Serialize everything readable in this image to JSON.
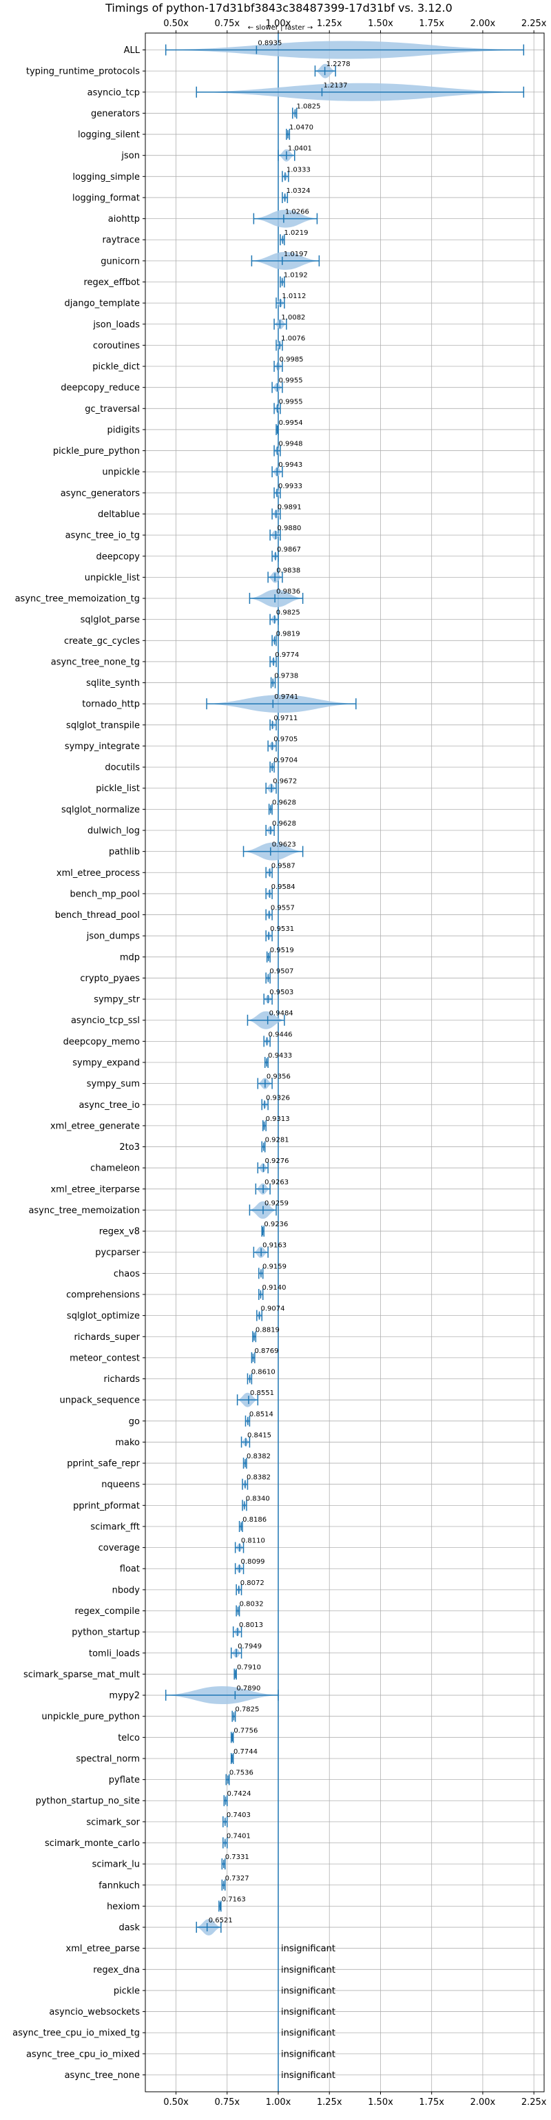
{
  "chart_data": {
    "type": "violin",
    "title": "Timings of python-17d31bf3843c38487399-17d31bf vs. 3.12.0",
    "annotation": "← slower | faster →",
    "xlim": [
      0.35,
      2.3
    ],
    "x_ticks": [
      0.5,
      0.75,
      1.0,
      1.25,
      1.5,
      1.75,
      2.0,
      2.25
    ],
    "x_tick_labels": [
      "0.50x",
      "0.75x",
      "1.00x",
      "1.25x",
      "1.50x",
      "1.75x",
      "2.00x",
      "2.25x"
    ],
    "grid": true,
    "reference_line": 1.0,
    "benchmarks": [
      {
        "name": "ALL",
        "value": 0.8935,
        "label": "0.8935",
        "low": 0.45,
        "high": 2.2
      },
      {
        "name": "typing_runtime_protocols",
        "value": 1.2278,
        "label": "1.2278",
        "low": 1.18,
        "high": 1.28
      },
      {
        "name": "asyncio_tcp",
        "value": 1.2137,
        "label": "1.2137",
        "low": 0.6,
        "high": 2.2
      },
      {
        "name": "generators",
        "value": 1.0825,
        "label": "1.0825",
        "low": 1.07,
        "high": 1.09
      },
      {
        "name": "logging_silent",
        "value": 1.047,
        "label": "1.0470",
        "low": 1.04,
        "high": 1.055
      },
      {
        "name": "json",
        "value": 1.0401,
        "label": "1.0401",
        "low": 1.0,
        "high": 1.08
      },
      {
        "name": "logging_simple",
        "value": 1.0333,
        "label": "1.0333",
        "low": 1.02,
        "high": 1.05
      },
      {
        "name": "logging_format",
        "value": 1.0324,
        "label": "1.0324",
        "low": 1.02,
        "high": 1.045
      },
      {
        "name": "aiohttp",
        "value": 1.0266,
        "label": "1.0266",
        "low": 0.88,
        "high": 1.19
      },
      {
        "name": "raytrace",
        "value": 1.0219,
        "label": "1.0219",
        "low": 1.01,
        "high": 1.03
      },
      {
        "name": "gunicorn",
        "value": 1.0197,
        "label": "1.0197",
        "low": 0.87,
        "high": 1.2
      },
      {
        "name": "regex_effbot",
        "value": 1.0192,
        "label": "1.0192",
        "low": 1.01,
        "high": 1.03
      },
      {
        "name": "django_template",
        "value": 1.0112,
        "label": "1.0112",
        "low": 0.99,
        "high": 1.03
      },
      {
        "name": "json_loads",
        "value": 1.0082,
        "label": "1.0082",
        "low": 0.98,
        "high": 1.04
      },
      {
        "name": "coroutines",
        "value": 1.0076,
        "label": "1.0076",
        "low": 0.99,
        "high": 1.02
      },
      {
        "name": "pickle_dict",
        "value": 0.9985,
        "label": "0.9985",
        "low": 0.98,
        "high": 1.02
      },
      {
        "name": "deepcopy_reduce",
        "value": 0.9955,
        "label": "0.9955",
        "low": 0.97,
        "high": 1.02
      },
      {
        "name": "gc_traversal",
        "value": 0.9955,
        "label": "0.9955",
        "low": 0.98,
        "high": 1.01
      },
      {
        "name": "pidigits",
        "value": 0.9954,
        "label": "0.9954",
        "low": 0.99,
        "high": 1.0
      },
      {
        "name": "pickle_pure_python",
        "value": 0.9948,
        "label": "0.9948",
        "low": 0.98,
        "high": 1.01
      },
      {
        "name": "unpickle",
        "value": 0.9943,
        "label": "0.9943",
        "low": 0.97,
        "high": 1.02
      },
      {
        "name": "async_generators",
        "value": 0.9933,
        "label": "0.9933",
        "low": 0.98,
        "high": 1.01
      },
      {
        "name": "deltablue",
        "value": 0.9891,
        "label": "0.9891",
        "low": 0.97,
        "high": 1.01
      },
      {
        "name": "async_tree_io_tg",
        "value": 0.988,
        "label": "0.9880",
        "low": 0.96,
        "high": 1.01
      },
      {
        "name": "deepcopy",
        "value": 0.9867,
        "label": "0.9867",
        "low": 0.97,
        "high": 1.0
      },
      {
        "name": "unpickle_list",
        "value": 0.9838,
        "label": "0.9838",
        "low": 0.95,
        "high": 1.02
      },
      {
        "name": "async_tree_memoization_tg",
        "value": 0.9836,
        "label": "0.9836",
        "low": 0.86,
        "high": 1.12
      },
      {
        "name": "sqlglot_parse",
        "value": 0.9825,
        "label": "0.9825",
        "low": 0.96,
        "high": 1.0
      },
      {
        "name": "create_gc_cycles",
        "value": 0.9819,
        "label": "0.9819",
        "low": 0.97,
        "high": 0.99
      },
      {
        "name": "async_tree_none_tg",
        "value": 0.9774,
        "label": "0.9774",
        "low": 0.96,
        "high": 0.99
      },
      {
        "name": "sqlite_synth",
        "value": 0.9738,
        "label": "0.9738",
        "low": 0.965,
        "high": 0.985
      },
      {
        "name": "tornado_http",
        "value": 0.9741,
        "label": "0.9741",
        "low": 0.65,
        "high": 1.38
      },
      {
        "name": "sqlglot_transpile",
        "value": 0.9711,
        "label": "0.9711",
        "low": 0.96,
        "high": 0.99
      },
      {
        "name": "sympy_integrate",
        "value": 0.9705,
        "label": "0.9705",
        "low": 0.95,
        "high": 0.99
      },
      {
        "name": "docutils",
        "value": 0.9704,
        "label": "0.9704",
        "low": 0.96,
        "high": 0.98
      },
      {
        "name": "pickle_list",
        "value": 0.9672,
        "label": "0.9672",
        "low": 0.94,
        "high": 0.99
      },
      {
        "name": "sqlglot_normalize",
        "value": 0.9628,
        "label": "0.9628",
        "low": 0.955,
        "high": 0.97
      },
      {
        "name": "dulwich_log",
        "value": 0.9628,
        "label": "0.9628",
        "low": 0.94,
        "high": 0.98
      },
      {
        "name": "pathlib",
        "value": 0.9623,
        "label": "0.9623",
        "low": 0.83,
        "high": 1.12
      },
      {
        "name": "xml_etree_process",
        "value": 0.9587,
        "label": "0.9587",
        "low": 0.94,
        "high": 0.97
      },
      {
        "name": "bench_mp_pool",
        "value": 0.9584,
        "label": "0.9584",
        "low": 0.94,
        "high": 0.97
      },
      {
        "name": "bench_thread_pool",
        "value": 0.9557,
        "label": "0.9557",
        "low": 0.94,
        "high": 0.97
      },
      {
        "name": "json_dumps",
        "value": 0.9531,
        "label": "0.9531",
        "low": 0.94,
        "high": 0.97
      },
      {
        "name": "mdp",
        "value": 0.9519,
        "label": "0.9519",
        "low": 0.945,
        "high": 0.96
      },
      {
        "name": "crypto_pyaes",
        "value": 0.9507,
        "label": "0.9507",
        "low": 0.94,
        "high": 0.96
      },
      {
        "name": "sympy_str",
        "value": 0.9503,
        "label": "0.9503",
        "low": 0.93,
        "high": 0.97
      },
      {
        "name": "asyncio_tcp_ssl",
        "value": 0.9484,
        "label": "0.9484",
        "low": 0.85,
        "high": 1.03
      },
      {
        "name": "deepcopy_memo",
        "value": 0.9446,
        "label": "0.9446",
        "low": 0.93,
        "high": 0.96
      },
      {
        "name": "sympy_expand",
        "value": 0.9433,
        "label": "0.9433",
        "low": 0.935,
        "high": 0.95
      },
      {
        "name": "sympy_sum",
        "value": 0.9356,
        "label": "0.9356",
        "low": 0.9,
        "high": 0.97
      },
      {
        "name": "async_tree_io",
        "value": 0.9326,
        "label": "0.9326",
        "low": 0.92,
        "high": 0.95
      },
      {
        "name": "xml_etree_generate",
        "value": 0.9313,
        "label": "0.9313",
        "low": 0.925,
        "high": 0.94
      },
      {
        "name": "2to3",
        "value": 0.9281,
        "label": "0.9281",
        "low": 0.92,
        "high": 0.935
      },
      {
        "name": "chameleon",
        "value": 0.9276,
        "label": "0.9276",
        "low": 0.9,
        "high": 0.95
      },
      {
        "name": "xml_etree_iterparse",
        "value": 0.9263,
        "label": "0.9263",
        "low": 0.89,
        "high": 0.96
      },
      {
        "name": "async_tree_memoization",
        "value": 0.9259,
        "label": "0.9259",
        "low": 0.86,
        "high": 0.99
      },
      {
        "name": "regex_v8",
        "value": 0.9236,
        "label": "0.9236",
        "low": 0.92,
        "high": 0.93
      },
      {
        "name": "pycparser",
        "value": 0.9163,
        "label": "0.9163",
        "low": 0.88,
        "high": 0.95
      },
      {
        "name": "chaos",
        "value": 0.9159,
        "label": "0.9159",
        "low": 0.905,
        "high": 0.925
      },
      {
        "name": "comprehensions",
        "value": 0.914,
        "label": "0.9140",
        "low": 0.905,
        "high": 0.925
      },
      {
        "name": "sqlglot_optimize",
        "value": 0.9074,
        "label": "0.9074",
        "low": 0.895,
        "high": 0.92
      },
      {
        "name": "richards_super",
        "value": 0.8819,
        "label": "0.8819",
        "low": 0.875,
        "high": 0.89
      },
      {
        "name": "meteor_contest",
        "value": 0.8769,
        "label": "0.8769",
        "low": 0.87,
        "high": 0.885
      },
      {
        "name": "richards",
        "value": 0.861,
        "label": "0.8610",
        "low": 0.85,
        "high": 0.87
      },
      {
        "name": "unpack_sequence",
        "value": 0.8551,
        "label": "0.8551",
        "low": 0.8,
        "high": 0.9
      },
      {
        "name": "go",
        "value": 0.8514,
        "label": "0.8514",
        "low": 0.84,
        "high": 0.86
      },
      {
        "name": "mako",
        "value": 0.8415,
        "label": "0.8415",
        "low": 0.82,
        "high": 0.86
      },
      {
        "name": "pprint_safe_repr",
        "value": 0.8382,
        "label": "0.8382",
        "low": 0.83,
        "high": 0.845
      },
      {
        "name": "nqueens",
        "value": 0.8382,
        "label": "0.8382",
        "low": 0.825,
        "high": 0.85
      },
      {
        "name": "pprint_pformat",
        "value": 0.834,
        "label": "0.8340",
        "low": 0.825,
        "high": 0.845
      },
      {
        "name": "scimark_fft",
        "value": 0.8186,
        "label": "0.8186",
        "low": 0.81,
        "high": 0.825
      },
      {
        "name": "coverage",
        "value": 0.811,
        "label": "0.8110",
        "low": 0.79,
        "high": 0.83
      },
      {
        "name": "float",
        "value": 0.8099,
        "label": "0.8099",
        "low": 0.79,
        "high": 0.83
      },
      {
        "name": "nbody",
        "value": 0.8072,
        "label": "0.8072",
        "low": 0.795,
        "high": 0.82
      },
      {
        "name": "regex_compile",
        "value": 0.8032,
        "label": "0.8032",
        "low": 0.795,
        "high": 0.81
      },
      {
        "name": "python_startup",
        "value": 0.8013,
        "label": "0.8013",
        "low": 0.78,
        "high": 0.82
      },
      {
        "name": "tomli_loads",
        "value": 0.7949,
        "label": "0.7949",
        "low": 0.77,
        "high": 0.82
      },
      {
        "name": "scimark_sparse_mat_mult",
        "value": 0.791,
        "label": "0.7910",
        "low": 0.785,
        "high": 0.795
      },
      {
        "name": "mypy2",
        "value": 0.789,
        "label": "0.7890",
        "low": 0.45,
        "high": 1.0
      },
      {
        "name": "unpickle_pure_python",
        "value": 0.7825,
        "label": "0.7825",
        "low": 0.775,
        "high": 0.79
      },
      {
        "name": "telco",
        "value": 0.7756,
        "label": "0.7756",
        "low": 0.77,
        "high": 0.78
      },
      {
        "name": "spectral_norm",
        "value": 0.7744,
        "label": "0.7744",
        "low": 0.77,
        "high": 0.78
      },
      {
        "name": "pyflate",
        "value": 0.7536,
        "label": "0.7536",
        "low": 0.745,
        "high": 0.76
      },
      {
        "name": "python_startup_no_site",
        "value": 0.7424,
        "label": "0.7424",
        "low": 0.735,
        "high": 0.75
      },
      {
        "name": "scimark_sor",
        "value": 0.7403,
        "label": "0.7403",
        "low": 0.73,
        "high": 0.75
      },
      {
        "name": "scimark_monte_carlo",
        "value": 0.7401,
        "label": "0.7401",
        "low": 0.73,
        "high": 0.75
      },
      {
        "name": "scimark_lu",
        "value": 0.7331,
        "label": "0.7331",
        "low": 0.725,
        "high": 0.74
      },
      {
        "name": "fannkuch",
        "value": 0.7327,
        "label": "0.7327",
        "low": 0.725,
        "high": 0.74
      },
      {
        "name": "hexiom",
        "value": 0.7163,
        "label": "0.7163",
        "low": 0.71,
        "high": 0.72
      },
      {
        "name": "dask",
        "value": 0.6521,
        "label": "0.6521",
        "low": 0.6,
        "high": 0.72
      },
      {
        "name": "xml_etree_parse",
        "value": null,
        "label": "insignificant"
      },
      {
        "name": "regex_dna",
        "value": null,
        "label": "insignificant"
      },
      {
        "name": "pickle",
        "value": null,
        "label": "insignificant"
      },
      {
        "name": "asyncio_websockets",
        "value": null,
        "label": "insignificant"
      },
      {
        "name": "async_tree_cpu_io_mixed_tg",
        "value": null,
        "label": "insignificant"
      },
      {
        "name": "async_tree_cpu_io_mixed",
        "value": null,
        "label": "insignificant"
      },
      {
        "name": "async_tree_none",
        "value": null,
        "label": "insignificant"
      }
    ]
  },
  "colors": {
    "violin": "#a6c8e6",
    "line": "#1f77b4",
    "grid": "#b0b0b0",
    "highlight": "#d62728"
  }
}
